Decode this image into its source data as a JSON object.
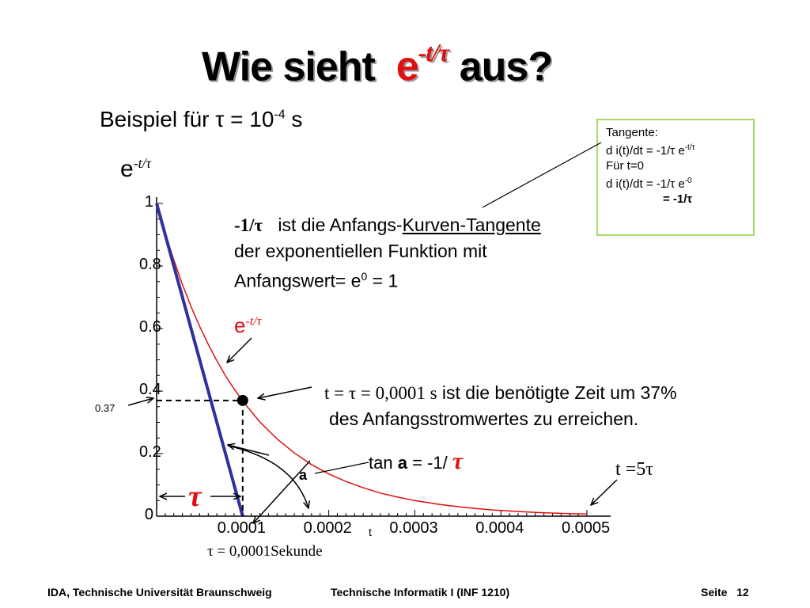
{
  "slide": {
    "title_prefix": "Wie sieht",
    "title_expr": "e",
    "title_expr_exp": "-t/τ",
    "title_suffix": "aus?",
    "subtitle_text": "Beispiel für τ = 10",
    "subtitle_exp": "-4",
    "subtitle_unit": " s",
    "y_label_base": "e",
    "y_label_exp": "-t/τ"
  },
  "tangent_box": {
    "line1": "Tangente:",
    "line2_base": "d i(t)/dt = -1/τ e",
    "line2_exp": "-t/τ",
    "line3": "Für t=0",
    "line4_base": "d i(t)/dt = -1/τ e",
    "line4_exp": "-0",
    "line5": "= -1/τ"
  },
  "annotations": {
    "tangent_note_bold": "-1/τ",
    "tangent_note_line1_rest": "ist die Anfangs-",
    "tangent_note_line1_underlined": "Kurven-Tangente",
    "tangent_note_line2": "der exponentiellen Funktion mit",
    "tangent_note_line3_base": "Anfangswert= e",
    "tangent_note_line3_exp": "0",
    "tangent_note_line3_rest": " = 1",
    "curve_label_base": "e",
    "curve_label_exp": "-t/τ",
    "tau_point_line1_formula": "t = τ = 0,0001 s",
    "tau_point_line1_rest": " ist die benötigte Zeit um 37%",
    "tau_point_line2": "des Anfangsstromwertes zu erreichen.",
    "tan_label_prefix": "tan ",
    "tan_label_a": "a",
    "tan_label_mid": " = -1/ ",
    "tan_label_tau": "τ",
    "angle_label": "a",
    "five_tau_label": "t =5τ",
    "tau_big_label": "τ",
    "tau_value_label": "τ = 0,0001Sekunde",
    "y_037_label": "0.37"
  },
  "chart_data": {
    "type": "line",
    "title": "",
    "xlabel": "t",
    "ylabel": "e-t/τ",
    "xlim": [
      0,
      0.0005
    ],
    "ylim": [
      0,
      1
    ],
    "x_ticks": [
      0.0001,
      0.0002,
      0.0003,
      0.0004,
      0.0005
    ],
    "x_tick_labels": [
      "0.0001",
      "0.0002",
      "0.0003",
      "0.0004",
      "0.0005"
    ],
    "y_ticks": [
      0,
      0.2,
      0.4,
      0.6,
      0.8,
      1
    ],
    "y_tick_labels": [
      "0",
      "0.2",
      "0.4",
      "0.6",
      "0.8",
      "1"
    ],
    "tau": 0.0001,
    "series": [
      {
        "role": "exponential",
        "color": "#e01010",
        "x": [
          0,
          1e-05,
          2e-05,
          3e-05,
          4e-05,
          5e-05,
          6e-05,
          7e-05,
          8e-05,
          9e-05,
          0.0001,
          0.00012,
          0.00014,
          0.00016,
          0.00018,
          0.0002,
          0.00022,
          0.00024,
          0.00026,
          0.00028,
          0.0003,
          0.00033,
          0.00036,
          0.00039,
          0.00042,
          0.00045,
          0.00048,
          0.0005
        ],
        "y": [
          1,
          0.905,
          0.819,
          0.741,
          0.67,
          0.607,
          0.549,
          0.497,
          0.449,
          0.407,
          0.368,
          0.301,
          0.247,
          0.202,
          0.165,
          0.135,
          0.111,
          0.091,
          0.074,
          0.061,
          0.05,
          0.037,
          0.027,
          0.02,
          0.015,
          0.011,
          0.008,
          0.007
        ]
      },
      {
        "role": "tangent",
        "color": "#3030a0",
        "x": [
          0,
          0.0001
        ],
        "y": [
          1,
          0
        ]
      }
    ],
    "marker": {
      "x": 0.0001,
      "y": 0.37
    },
    "grid": false
  },
  "footer": {
    "left": "IDA, Technische Universität Braunschweig",
    "center": "Technische Informatik I (INF 1210)",
    "page_label": "Seite",
    "page_number": "12"
  }
}
